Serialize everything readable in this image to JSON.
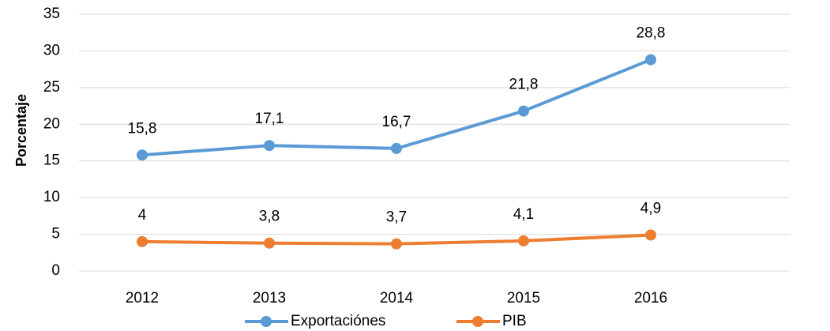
{
  "chart_data": {
    "type": "line",
    "y_label": "Porcentaje",
    "categories": [
      "2012",
      "2013",
      "2014",
      "2015",
      "2016"
    ],
    "series": [
      {
        "name": "Exportaciónes",
        "color": "#5b9bd5",
        "values": [
          15.8,
          17.1,
          16.7,
          21.8,
          28.8
        ],
        "value_labels": [
          "15,8",
          "17,1",
          "16,7",
          "21,8",
          "28,8"
        ]
      },
      {
        "name": "PIB",
        "color": "#ed7d31",
        "values": [
          4,
          3.8,
          3.7,
          4.1,
          4.9
        ],
        "value_labels": [
          "4",
          "3,8",
          "3,7",
          "4,1",
          "4,9"
        ]
      }
    ],
    "ylim": [
      0,
      35
    ],
    "yticks": [
      0,
      5,
      10,
      15,
      20,
      25,
      30,
      35
    ],
    "grid": true,
    "legend": "bottom"
  }
}
